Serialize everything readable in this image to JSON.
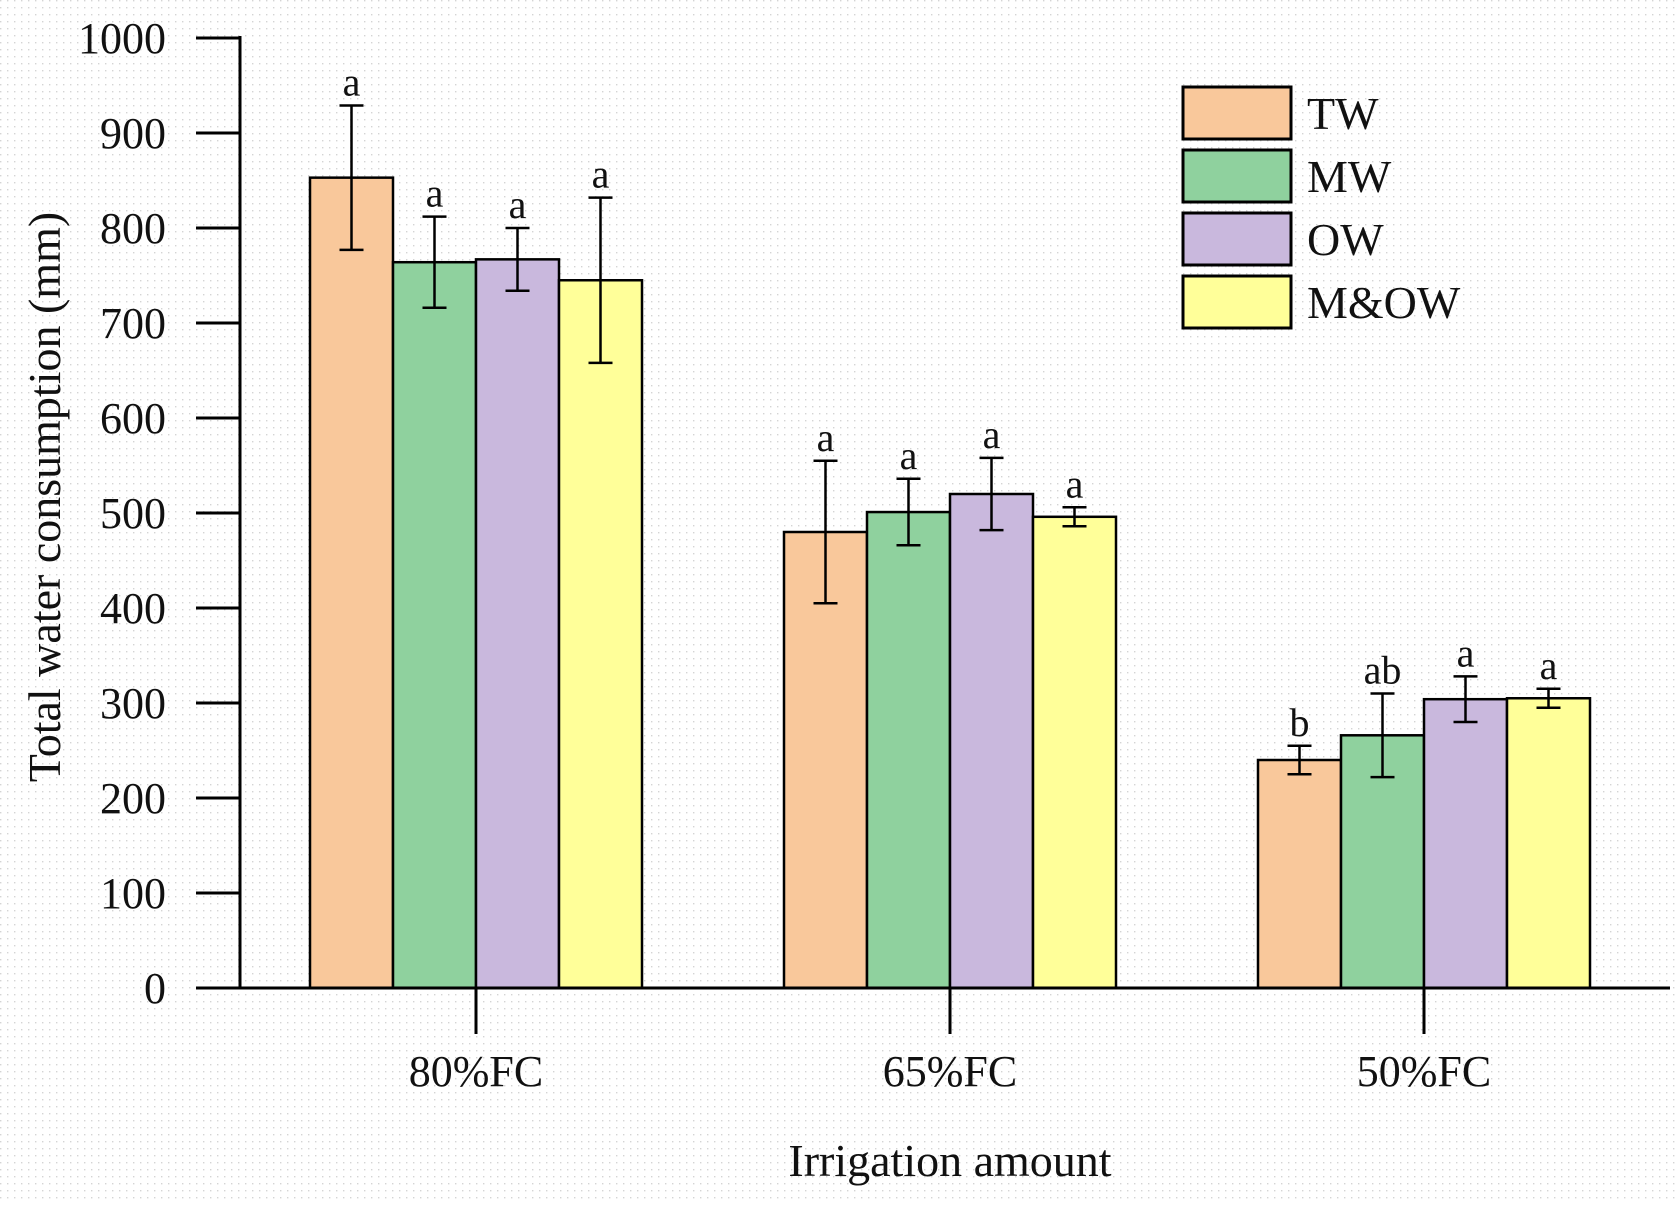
{
  "chart_data": {
    "type": "bar",
    "xlabel": "Irrigation amount",
    "ylabel": "Total water consumption (mm)",
    "ylim": [
      0,
      1000
    ],
    "yticks": [
      0,
      100,
      200,
      300,
      400,
      500,
      600,
      700,
      800,
      900,
      1000
    ],
    "categories": [
      "80%FC",
      "65%FC",
      "50%FC"
    ],
    "legend_position": "top-right",
    "grid": false,
    "series": [
      {
        "name": "TW",
        "color": "#f9c89b",
        "values": [
          853,
          480,
          240
        ],
        "errors": [
          76,
          75,
          15
        ],
        "labels": [
          "a",
          "a",
          "b"
        ]
      },
      {
        "name": "MW",
        "color": "#8fd19e",
        "values": [
          764,
          501,
          266
        ],
        "errors": [
          48,
          35,
          44
        ],
        "labels": [
          "a",
          "a",
          "ab"
        ]
      },
      {
        "name": "OW",
        "color": "#c9b8dd",
        "values": [
          767,
          520,
          304
        ],
        "errors": [
          33,
          38,
          24
        ],
        "labels": [
          "a",
          "a",
          "a"
        ]
      },
      {
        "name": "M&OW",
        "color": "#ffff99",
        "values": [
          745,
          496,
          305
        ],
        "errors": [
          87,
          10,
          10
        ],
        "labels": [
          "a",
          "a",
          "a"
        ]
      }
    ]
  }
}
